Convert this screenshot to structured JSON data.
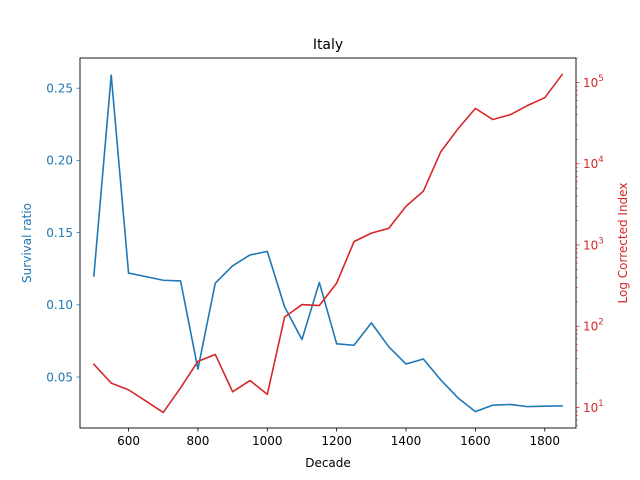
{
  "chart_data": {
    "type": "line",
    "title": "Italy",
    "xlabel": "Decade",
    "xlim": [
      460,
      1890
    ],
    "x_ticks": [
      600,
      800,
      1000,
      1200,
      1400,
      1600,
      1800
    ],
    "x_tick_labels": [
      "600",
      "800",
      "1000",
      "1200",
      "1400",
      "1600",
      "1800"
    ],
    "grid": false,
    "legend": "none",
    "x": [
      500,
      550,
      600,
      650,
      700,
      750,
      800,
      850,
      900,
      950,
      1000,
      1050,
      1100,
      1150,
      1200,
      1250,
      1300,
      1350,
      1400,
      1450,
      1500,
      1550,
      1600,
      1650,
      1700,
      1750,
      1800,
      1850
    ],
    "left_axis": {
      "label": "Survival ratio",
      "color": "#1f77b4",
      "scale": "linear",
      "ylim": [
        0.0147,
        0.2709
      ],
      "ticks": [
        0.05,
        0.1,
        0.15,
        0.2,
        0.25
      ],
      "tick_labels": [
        "0.05",
        "0.10",
        "0.15",
        "0.20",
        "0.25"
      ]
    },
    "right_axis": {
      "label": "Log Corrected Index",
      "color": "#d62728",
      "scale": "log",
      "ylim": [
        5.6,
        200000
      ],
      "ticks": [
        10,
        100,
        1000,
        10000,
        100000
      ],
      "tick_labels": [
        "10",
        "10",
        "10",
        "10",
        "10"
      ],
      "tick_exponents": [
        "1",
        "2",
        "3",
        "4",
        "5"
      ]
    },
    "series": [
      {
        "axis": "left",
        "color": "#1f77b4",
        "values": [
          0.12,
          0.259,
          0.122,
          0.1195,
          0.117,
          0.1165,
          0.0555,
          0.115,
          0.127,
          0.1345,
          0.137,
          0.0985,
          0.076,
          0.1155,
          0.073,
          0.072,
          0.0875,
          0.071,
          0.059,
          0.0625,
          0.048,
          0.0355,
          0.026,
          0.0305,
          0.031,
          0.0295,
          0.0298,
          0.03
        ]
      },
      {
        "axis": "right",
        "color": "#d62728",
        "values": [
          34,
          20,
          16.5,
          12,
          8.7,
          17.5,
          37,
          45,
          15.6,
          21.5,
          14.5,
          130,
          185,
          180,
          340,
          1100,
          1400,
          1600,
          3000,
          4600,
          14000,
          27000,
          48000,
          35000,
          40000,
          52000,
          65000,
          125000
        ]
      }
    ]
  }
}
